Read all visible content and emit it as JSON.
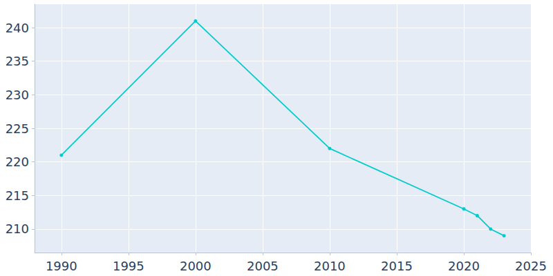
{
  "chart_data": {
    "type": "line",
    "x": [
      1990,
      2000,
      2010,
      2020,
      2021,
      2022,
      2023
    ],
    "values": [
      221,
      241,
      222,
      213,
      212,
      210,
      209
    ],
    "color": "#00cccc",
    "marker": "circle",
    "xlim": [
      1988,
      2025
    ],
    "xticks": [
      1990,
      1995,
      2000,
      2005,
      2010,
      2015,
      2020,
      2025
    ],
    "ylim": [
      206.5,
      243.5
    ],
    "yticks": [
      210,
      215,
      220,
      225,
      230,
      235,
      240
    ],
    "grid": true
  }
}
